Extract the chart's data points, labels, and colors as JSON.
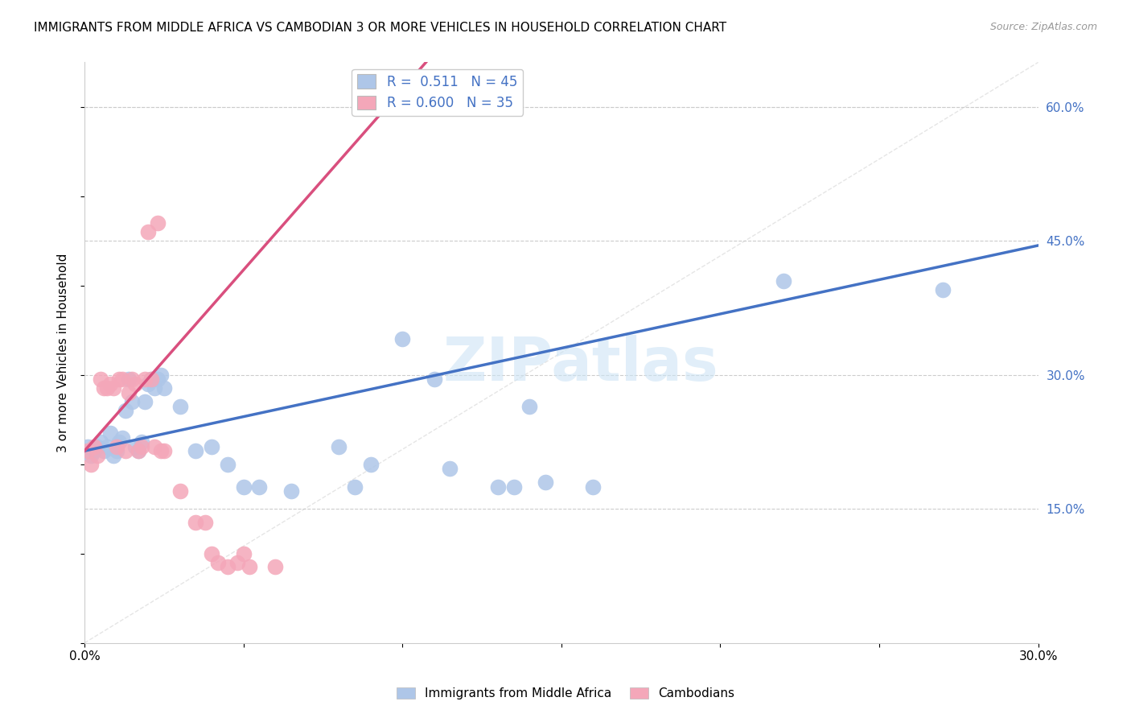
{
  "title": "IMMIGRANTS FROM MIDDLE AFRICA VS CAMBODIAN 3 OR MORE VEHICLES IN HOUSEHOLD CORRELATION CHART",
  "source": "Source: ZipAtlas.com",
  "ylabel": "3 or more Vehicles in Household",
  "xmin": 0.0,
  "xmax": 0.3,
  "ymin": 0.0,
  "ymax": 0.65,
  "legend_blue_r": "0.511",
  "legend_blue_n": "45",
  "legend_pink_r": "0.600",
  "legend_pink_n": "35",
  "blue_color": "#aec6e8",
  "pink_color": "#f4a7b9",
  "blue_line_color": "#4472c4",
  "pink_line_color": "#d94f7e",
  "watermark": "ZIPatlas",
  "blue_points": [
    [
      0.001,
      0.22
    ],
    [
      0.002,
      0.21
    ],
    [
      0.003,
      0.215
    ],
    [
      0.004,
      0.22
    ],
    [
      0.005,
      0.225
    ],
    [
      0.006,
      0.215
    ],
    [
      0.007,
      0.22
    ],
    [
      0.008,
      0.235
    ],
    [
      0.009,
      0.21
    ],
    [
      0.01,
      0.215
    ],
    [
      0.011,
      0.225
    ],
    [
      0.012,
      0.23
    ],
    [
      0.013,
      0.26
    ],
    [
      0.014,
      0.295
    ],
    [
      0.015,
      0.27
    ],
    [
      0.016,
      0.22
    ],
    [
      0.017,
      0.215
    ],
    [
      0.018,
      0.225
    ],
    [
      0.019,
      0.27
    ],
    [
      0.02,
      0.29
    ],
    [
      0.021,
      0.295
    ],
    [
      0.022,
      0.285
    ],
    [
      0.023,
      0.295
    ],
    [
      0.024,
      0.3
    ],
    [
      0.025,
      0.285
    ],
    [
      0.03,
      0.265
    ],
    [
      0.035,
      0.215
    ],
    [
      0.04,
      0.22
    ],
    [
      0.045,
      0.2
    ],
    [
      0.05,
      0.175
    ],
    [
      0.055,
      0.175
    ],
    [
      0.065,
      0.17
    ],
    [
      0.08,
      0.22
    ],
    [
      0.085,
      0.175
    ],
    [
      0.09,
      0.2
    ],
    [
      0.1,
      0.34
    ],
    [
      0.11,
      0.295
    ],
    [
      0.115,
      0.195
    ],
    [
      0.13,
      0.175
    ],
    [
      0.135,
      0.175
    ],
    [
      0.14,
      0.265
    ],
    [
      0.145,
      0.18
    ],
    [
      0.16,
      0.175
    ],
    [
      0.22,
      0.405
    ],
    [
      0.27,
      0.395
    ]
  ],
  "pink_points": [
    [
      0.001,
      0.215
    ],
    [
      0.002,
      0.2
    ],
    [
      0.003,
      0.22
    ],
    [
      0.004,
      0.21
    ],
    [
      0.005,
      0.295
    ],
    [
      0.006,
      0.285
    ],
    [
      0.007,
      0.285
    ],
    [
      0.008,
      0.29
    ],
    [
      0.009,
      0.285
    ],
    [
      0.01,
      0.22
    ],
    [
      0.011,
      0.295
    ],
    [
      0.012,
      0.295
    ],
    [
      0.013,
      0.215
    ],
    [
      0.014,
      0.28
    ],
    [
      0.015,
      0.295
    ],
    [
      0.016,
      0.29
    ],
    [
      0.017,
      0.215
    ],
    [
      0.018,
      0.22
    ],
    [
      0.019,
      0.295
    ],
    [
      0.02,
      0.46
    ],
    [
      0.021,
      0.295
    ],
    [
      0.022,
      0.22
    ],
    [
      0.023,
      0.47
    ],
    [
      0.024,
      0.215
    ],
    [
      0.025,
      0.215
    ],
    [
      0.03,
      0.17
    ],
    [
      0.035,
      0.135
    ],
    [
      0.038,
      0.135
    ],
    [
      0.04,
      0.1
    ],
    [
      0.042,
      0.09
    ],
    [
      0.045,
      0.085
    ],
    [
      0.048,
      0.09
    ],
    [
      0.05,
      0.1
    ],
    [
      0.052,
      0.085
    ],
    [
      0.06,
      0.085
    ]
  ],
  "blue_line_x": [
    0.0,
    0.3
  ],
  "blue_line_y": [
    0.215,
    0.445
  ],
  "pink_line_x": [
    0.0,
    0.1
  ],
  "pink_line_y": [
    0.215,
    0.62
  ]
}
